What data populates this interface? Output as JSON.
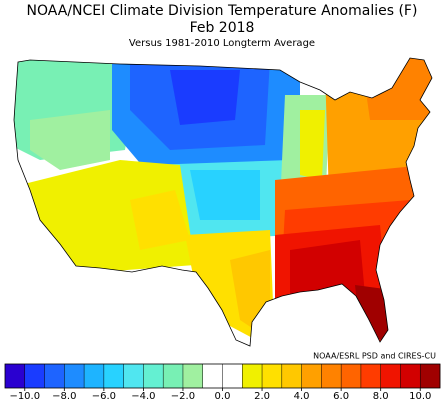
{
  "title": "NOAA/NCEI Climate Division Temperature Anomalies (F)",
  "date": "Feb 2018",
  "subtitle": "Versus 1981-2010 Longterm Average",
  "credit": "NOAA/ESRL PSD and CIRES-CU",
  "colorbar": {
    "lim": [
      -11,
      11
    ],
    "colors": [
      "#2a00d0",
      "#1a3cff",
      "#1e64ff",
      "#1e8cff",
      "#1eb4ff",
      "#28d2ff",
      "#50e6f0",
      "#64f0d2",
      "#78f0b4",
      "#a0f0a0",
      "#ffffff",
      "#ffffff",
      "#f0f000",
      "#ffe000",
      "#ffc800",
      "#ffa000",
      "#ff8200",
      "#ff6400",
      "#ff3c00",
      "#f01400",
      "#d20000",
      "#a00000"
    ],
    "ticks": [
      {
        "value": -10,
        "label": "−10.0"
      },
      {
        "value": -8,
        "label": "−8.0"
      },
      {
        "value": -6,
        "label": "−6.0"
      },
      {
        "value": -4,
        "label": "−4.0"
      },
      {
        "value": -2,
        "label": "−2.0"
      },
      {
        "value": 0,
        "label": "0.0"
      },
      {
        "value": 2,
        "label": "2.0"
      },
      {
        "value": 4,
        "label": "4.0"
      },
      {
        "value": 6,
        "label": "6.0"
      },
      {
        "value": 8,
        "label": "8.0"
      },
      {
        "value": 10,
        "label": "10.0"
      }
    ]
  }
}
